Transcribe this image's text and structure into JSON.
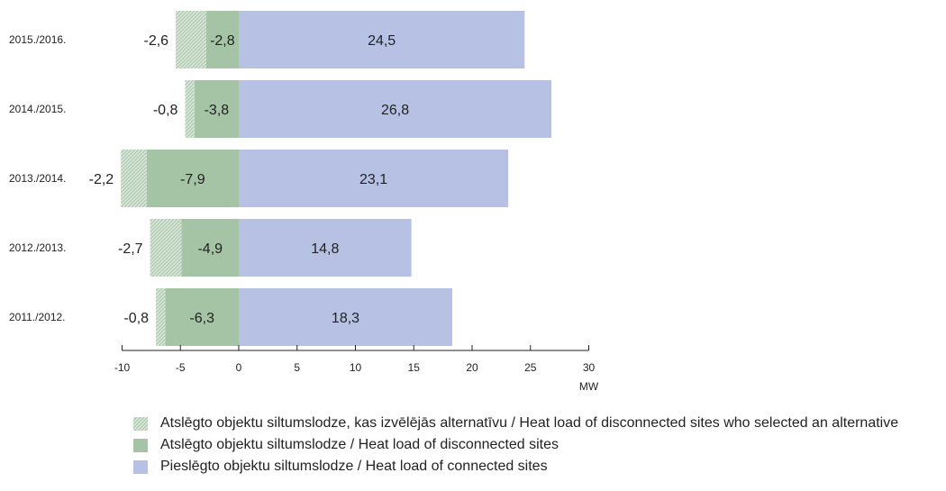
{
  "chart_data": {
    "type": "bar",
    "orientation": "horizontal",
    "stacked": true,
    "categories": [
      "2015./2016.",
      "2014./2015.",
      "2013./2014.",
      "2012./2013.",
      "2011./2012."
    ],
    "series": [
      {
        "name": "Atslēgto objektu siltumslodze, kas izvēlējās alternatīvu / Heat load of disconnected sites who selected an alternative",
        "values": [
          -2.6,
          -0.8,
          -2.2,
          -2.7,
          -0.8
        ],
        "labels": [
          "-2,6",
          "-0,8",
          "-2,2",
          "-2,7",
          "-0,8"
        ],
        "color": "#c8dcc8",
        "pattern": "crosshatch"
      },
      {
        "name": "Atslēgto objektu siltumslodze / Heat load of disconnected sites",
        "values": [
          -2.8,
          -3.8,
          -7.9,
          -4.9,
          -6.3
        ],
        "labels": [
          "-2,8",
          "-3,8",
          "-7,9",
          "-4,9",
          "-6,3"
        ],
        "color": "#a5c3a5"
      },
      {
        "name": "Pieslēgto objektu siltumslodze / Heat load of connected sites",
        "values": [
          24.5,
          26.8,
          23.1,
          14.8,
          18.3
        ],
        "labels": [
          "24,5",
          "26,8",
          "23,1",
          "14,8",
          "18,3"
        ],
        "color": "#b6c1e4"
      }
    ],
    "xticks": [
      -10,
      -5,
      0,
      5,
      10,
      15,
      20,
      25,
      30
    ],
    "xlim": [
      -10,
      30
    ],
    "xlabel": "MW",
    "ylabel": "",
    "title": "",
    "grid": false,
    "legend_position": "bottom"
  }
}
